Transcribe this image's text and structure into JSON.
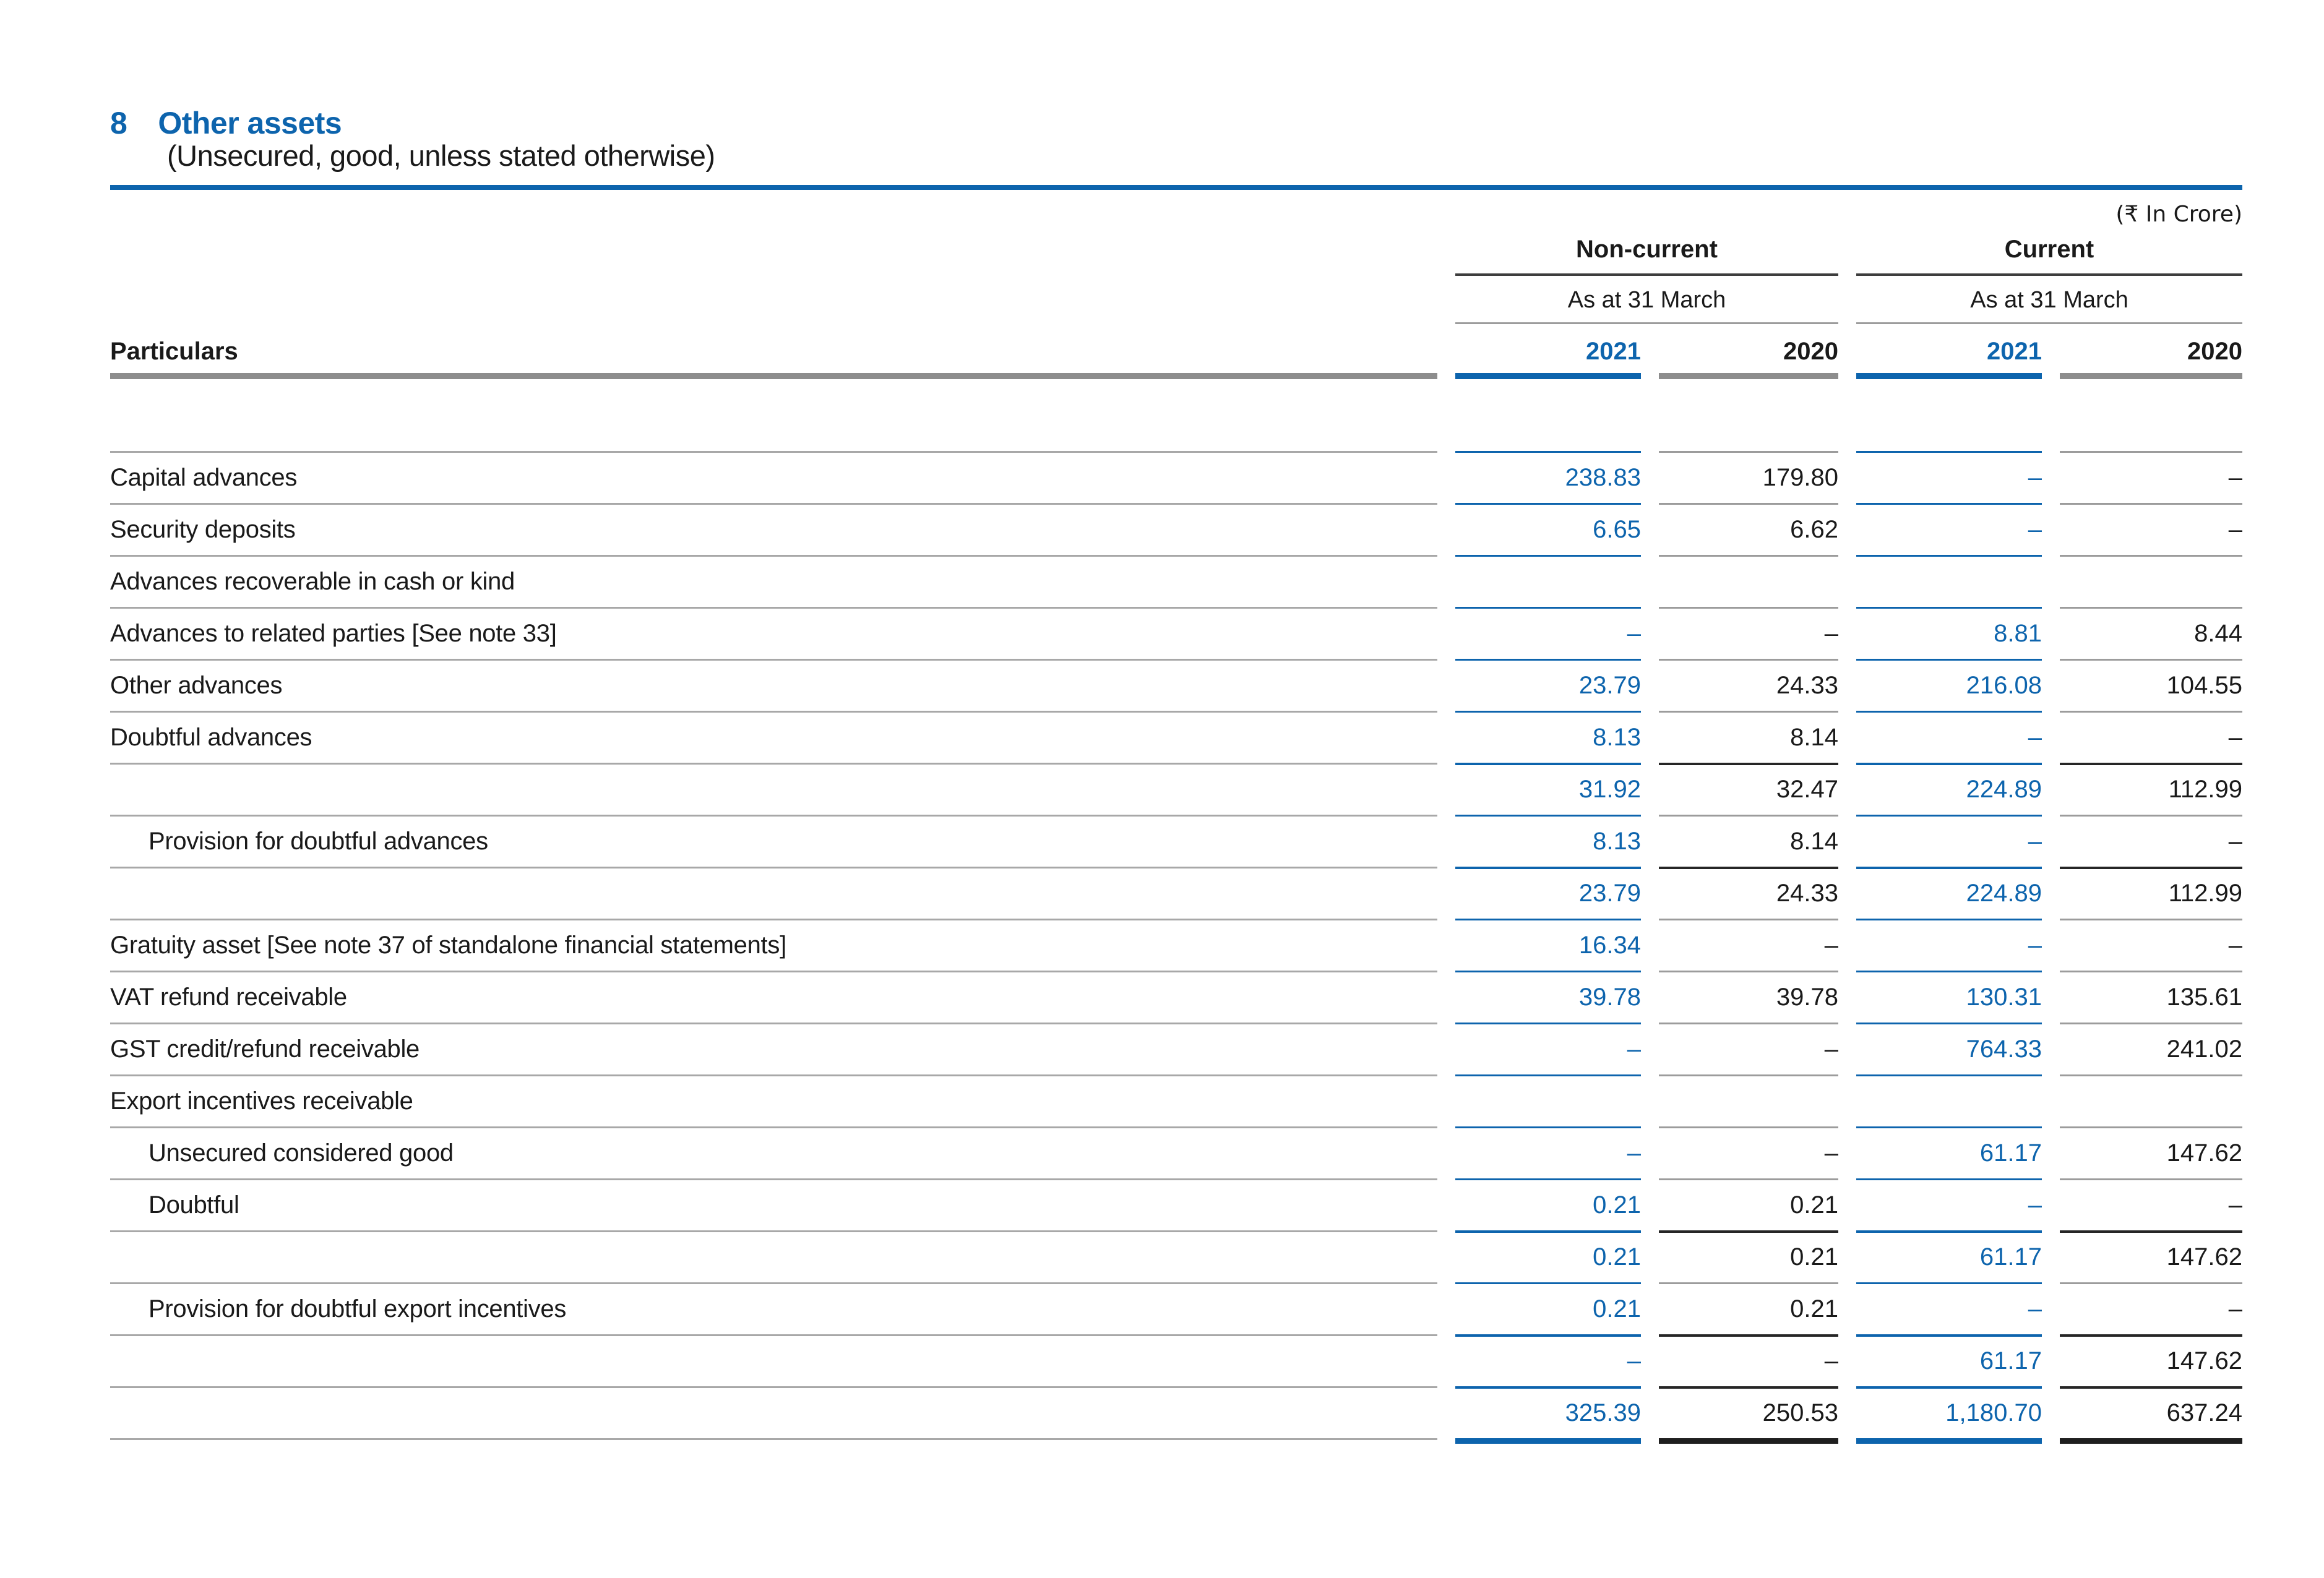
{
  "note": {
    "number": "8",
    "title": "Other assets",
    "subtitle": "(Unsecured, good, unless stated otherwise)",
    "unit_label": "(₹ In Crore)"
  },
  "table": {
    "particulars_label": "Particulars",
    "groups": [
      {
        "label": "Non-current",
        "period_label": "As at 31 March"
      },
      {
        "label": "Current",
        "period_label": "As at 31 March"
      }
    ],
    "year_columns": [
      {
        "label": "2021",
        "variant": "cur"
      },
      {
        "label": "2020",
        "variant": "pri"
      },
      {
        "label": "2021",
        "variant": "cur"
      },
      {
        "label": "2020",
        "variant": "pri"
      }
    ],
    "rows": [
      {
        "label": "",
        "indent": 0,
        "values": [
          "",
          "",
          "",
          ""
        ],
        "top_line": "none",
        "spacer": true
      },
      {
        "label": "Capital advances",
        "indent": 0,
        "values": [
          "238.83",
          "179.80",
          "–",
          "–"
        ],
        "top_line": "normal"
      },
      {
        "label": "Security deposits",
        "indent": 0,
        "values": [
          "6.65",
          "6.62",
          "–",
          "–"
        ],
        "top_line": "normal"
      },
      {
        "label": "Advances recoverable in cash or kind",
        "indent": 0,
        "values": [
          "",
          "",
          "",
          ""
        ],
        "top_line": "normal"
      },
      {
        "label": "Advances to related parties [See note 33]",
        "indent": 0,
        "values": [
          "–",
          "–",
          "8.81",
          "8.44"
        ],
        "top_line": "normal"
      },
      {
        "label": "Other advances",
        "indent": 0,
        "values": [
          "23.79",
          "24.33",
          "216.08",
          "104.55"
        ],
        "top_line": "normal"
      },
      {
        "label": "Doubtful advances",
        "indent": 0,
        "values": [
          "8.13",
          "8.14",
          "–",
          "–"
        ],
        "top_line": "normal"
      },
      {
        "label": "",
        "indent": 0,
        "values": [
          "31.92",
          "32.47",
          "224.89",
          "112.99"
        ],
        "top_line": "strong"
      },
      {
        "label": "Provision for doubtful advances",
        "indent": 1,
        "values": [
          "8.13",
          "8.14",
          "–",
          "–"
        ],
        "top_line": "normal"
      },
      {
        "label": "",
        "indent": 0,
        "values": [
          "23.79",
          "24.33",
          "224.89",
          "112.99"
        ],
        "top_line": "strong"
      },
      {
        "label": "Gratuity asset [See note 37 of standalone financial statements]",
        "indent": 0,
        "values": [
          "16.34",
          "–",
          "–",
          "–"
        ],
        "top_line": "normal"
      },
      {
        "label": "VAT refund receivable",
        "indent": 0,
        "values": [
          "39.78",
          "39.78",
          "130.31",
          "135.61"
        ],
        "top_line": "normal"
      },
      {
        "label": "GST credit/refund receivable",
        "indent": 0,
        "values": [
          "–",
          "–",
          "764.33",
          "241.02"
        ],
        "top_line": "normal"
      },
      {
        "label": "Export incentives receivable",
        "indent": 0,
        "values": [
          "",
          "",
          "",
          ""
        ],
        "top_line": "normal"
      },
      {
        "label": "Unsecured considered good",
        "indent": 1,
        "values": [
          "–",
          "–",
          "61.17",
          "147.62"
        ],
        "top_line": "normal"
      },
      {
        "label": "Doubtful",
        "indent": 1,
        "values": [
          "0.21",
          "0.21",
          "–",
          "–"
        ],
        "top_line": "normal"
      },
      {
        "label": "",
        "indent": 0,
        "values": [
          "0.21",
          "0.21",
          "61.17",
          "147.62"
        ],
        "top_line": "strong"
      },
      {
        "label": "Provision for doubtful export incentives",
        "indent": 1,
        "values": [
          "0.21",
          "0.21",
          "–",
          "–"
        ],
        "top_line": "normal"
      },
      {
        "label": "",
        "indent": 0,
        "values": [
          "–",
          "–",
          "61.17",
          "147.62"
        ],
        "top_line": "strong"
      },
      {
        "label": "",
        "indent": 0,
        "values": [
          "325.39",
          "250.53",
          "1,180.70",
          "637.24"
        ],
        "top_line": "strong",
        "is_total": true
      }
    ]
  },
  "colors": {
    "accent_blue": "#0d64ad",
    "prior_year_gray": "#8d8d8d",
    "dark_total_line": "#262626",
    "light_row_line": "#a8a8a8"
  }
}
